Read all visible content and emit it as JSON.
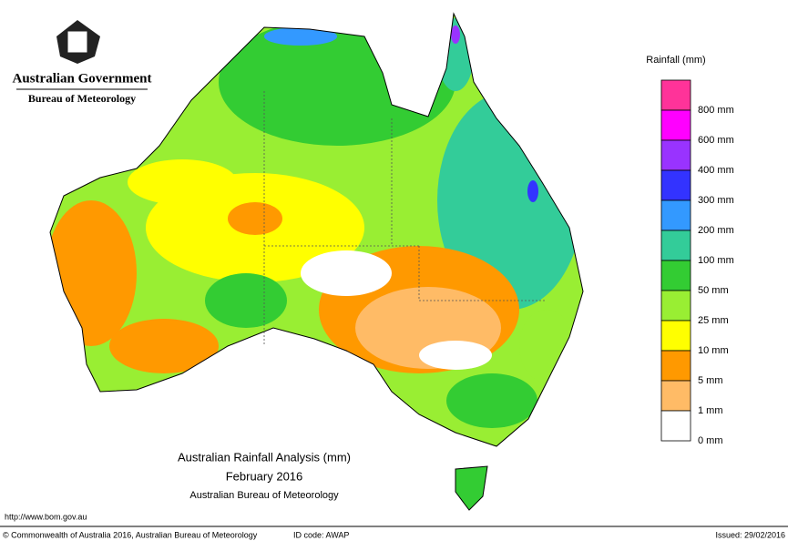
{
  "header": {
    "title": "Australian Government",
    "subtitle": "Bureau of Meteorology"
  },
  "legend": {
    "title": "Rainfall (mm)",
    "items": [
      {
        "label": "800 mm",
        "color": "#ff3399"
      },
      {
        "label": "600 mm",
        "color": "#ff00ff"
      },
      {
        "label": "400 mm",
        "color": "#9933ff"
      },
      {
        "label": "300 mm",
        "color": "#3333ff"
      },
      {
        "label": "200 mm",
        "color": "#3399ff"
      },
      {
        "label": "100 mm",
        "color": "#33cc99"
      },
      {
        "label": "50 mm",
        "color": "#33cc33"
      },
      {
        "label": "25 mm",
        "color": "#99ee33"
      },
      {
        "label": "10 mm",
        "color": "#ffff00"
      },
      {
        "label": "5 mm",
        "color": "#ff9900"
      },
      {
        "label": "1 mm",
        "color": "#ffbb66"
      },
      {
        "label": "0 mm",
        "color": "#ffffff"
      }
    ]
  },
  "caption": {
    "title": "Australian Rainfall Analysis (mm)",
    "date": "February 2016",
    "source": "Australian Bureau of Meteorology"
  },
  "footer": {
    "url": "http://www.bom.gov.au",
    "copyright": "© Commonwealth of Australia 2016, Australian Bureau of Meteorology",
    "id": "ID code: AWAP",
    "issued": "Issued: 29/02/2016"
  }
}
